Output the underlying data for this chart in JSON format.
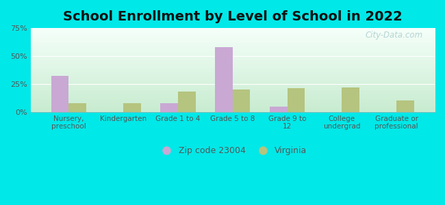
{
  "title": "School Enrollment by Level of School in 2022",
  "categories": [
    "Nursery,\npreschool",
    "Kindergarten",
    "Grade 1 to 4",
    "Grade 5 to 8",
    "Grade 9 to\n12",
    "College\nundergrad",
    "Graduate or\nprofessional"
  ],
  "zip_values": [
    32,
    0,
    8,
    58,
    5,
    0,
    0
  ],
  "va_values": [
    8,
    8,
    18,
    20,
    21,
    22,
    10
  ],
  "zip_color": "#c9a8d4",
  "va_color": "#b5c47e",
  "background_outer": "#00e8e8",
  "gradient_top": "#f5fffa",
  "gradient_bottom": "#c8ecd0",
  "ylim": [
    0,
    75
  ],
  "yticks": [
    0,
    25,
    50,
    75
  ],
  "ytick_labels": [
    "0%",
    "25%",
    "50%",
    "75%"
  ],
  "legend_zip_label": "Zip code 23004",
  "legend_va_label": "Virginia",
  "watermark": "City-Data.com",
  "bar_width": 0.32,
  "title_fontsize": 14,
  "axis_label_fontsize": 8,
  "legend_fontsize": 9,
  "tick_color": "#555555"
}
